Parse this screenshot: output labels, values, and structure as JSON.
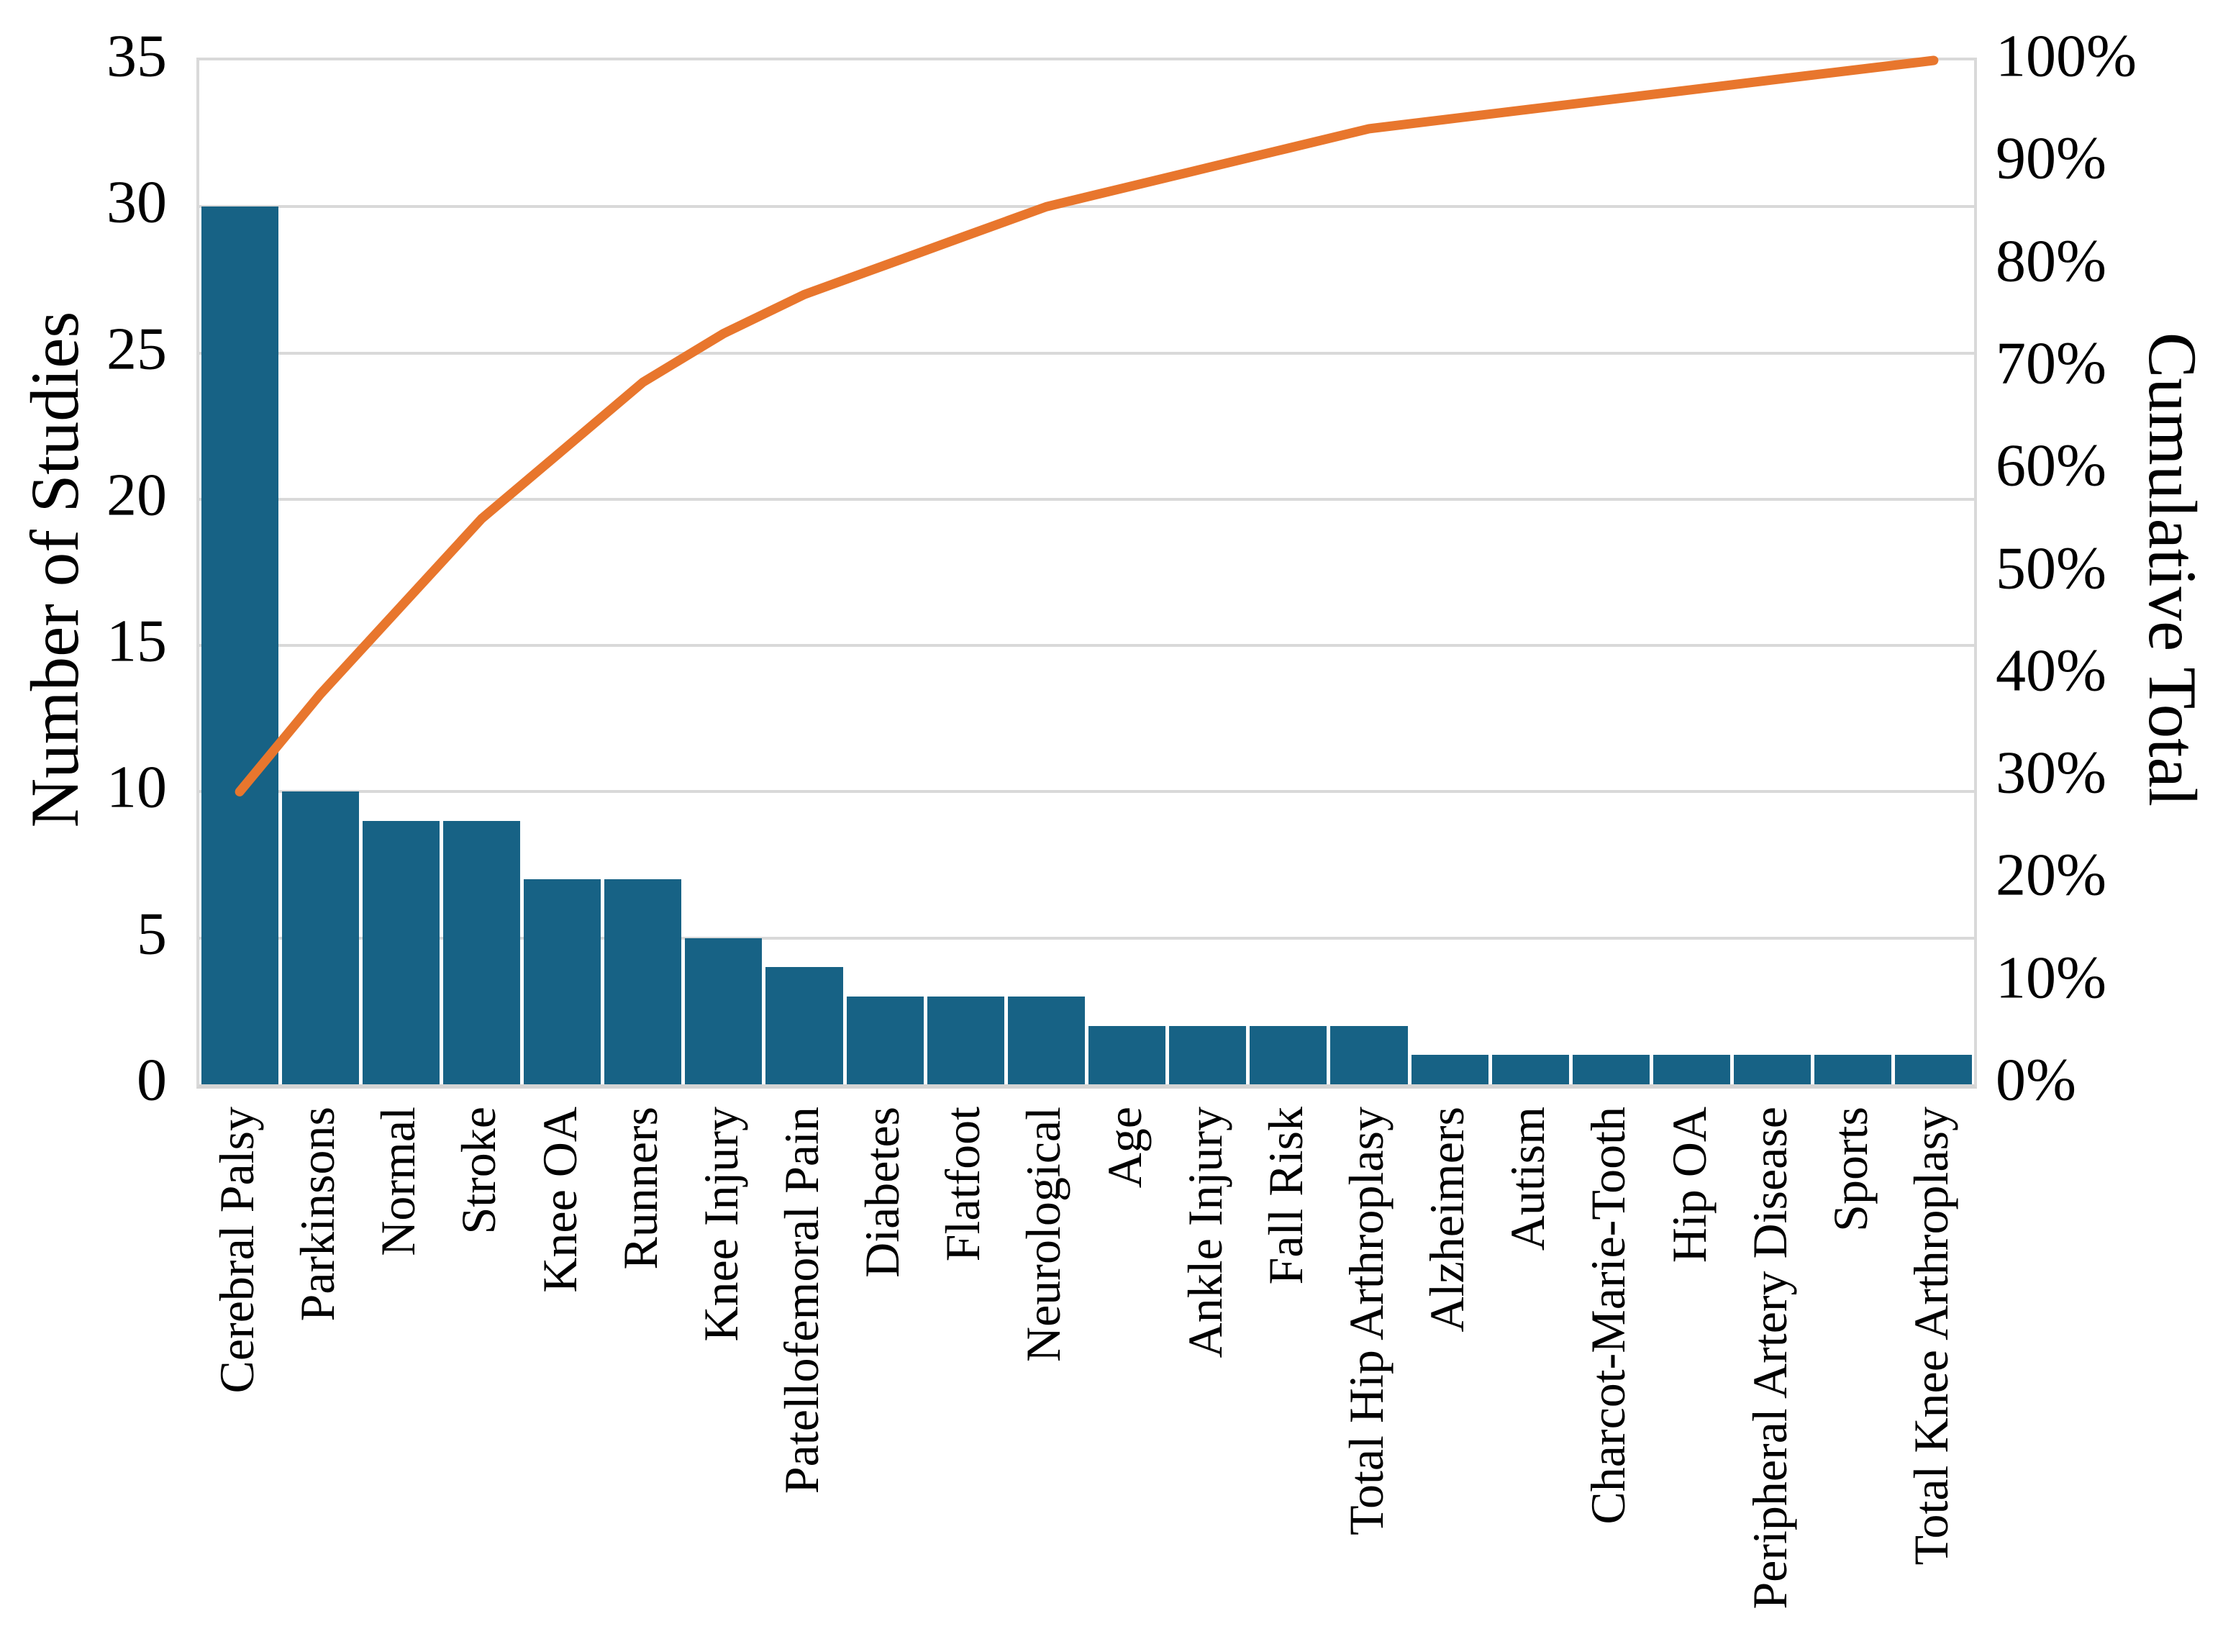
{
  "chart_data": {
    "type": "bar",
    "subtype": "pareto",
    "title": "",
    "categories": [
      "Cerebral Palsy",
      "Parkinsons",
      "Normal",
      "Stroke",
      "Knee OA",
      "Runners",
      "Knee Injury",
      "Patellofemoral Pain",
      "Diabetes",
      "Flatfoot",
      "Neurological",
      "Age",
      "Ankle Injury",
      "Fall Risk",
      "Total Hip Arthroplasy",
      "Alzheimers",
      "Autism",
      "Charcot-Marie-Tooth",
      "Hip OA",
      "Peripheral Artery Disease",
      "Sports",
      "Total Knee Arthroplasy"
    ],
    "series": [
      {
        "name": "Number of Studies",
        "type": "bar",
        "values": [
          30,
          10,
          9,
          9,
          7,
          7,
          5,
          4,
          3,
          3,
          3,
          2,
          2,
          2,
          2,
          1,
          1,
          1,
          1,
          1,
          1,
          1
        ]
      },
      {
        "name": "Cumulative Total",
        "type": "line",
        "unit": "%",
        "values": [
          28.57,
          38.1,
          46.67,
          55.24,
          61.9,
          68.57,
          73.33,
          77.14,
          80,
          82.86,
          85.71,
          87.62,
          89.52,
          91.43,
          93.33,
          94.29,
          95.24,
          96.19,
          97.14,
          98.1,
          99.05,
          100
        ]
      }
    ],
    "left_axis": {
      "title": "Number of Studies",
      "min": 0,
      "max": 35,
      "tick_step": 5,
      "tick_labels": [
        "0",
        "5",
        "10",
        "15",
        "20",
        "25",
        "30",
        "35"
      ]
    },
    "right_axis": {
      "title": "Cumulative Total",
      "min": 0,
      "max": 100,
      "tick_step": 10,
      "tick_labels": [
        "0%",
        "10%",
        "20%",
        "30%",
        "40%",
        "50%",
        "60%",
        "70%",
        "80%",
        "90%",
        "100%"
      ]
    },
    "legend": "none",
    "grid": true
  },
  "colors": {
    "bar": "#176285",
    "line": "#E8762D",
    "gridline": "#D9D9D9",
    "axis_line": "#D4D4D4",
    "text": "#000000",
    "background": "#FFFFFF"
  }
}
